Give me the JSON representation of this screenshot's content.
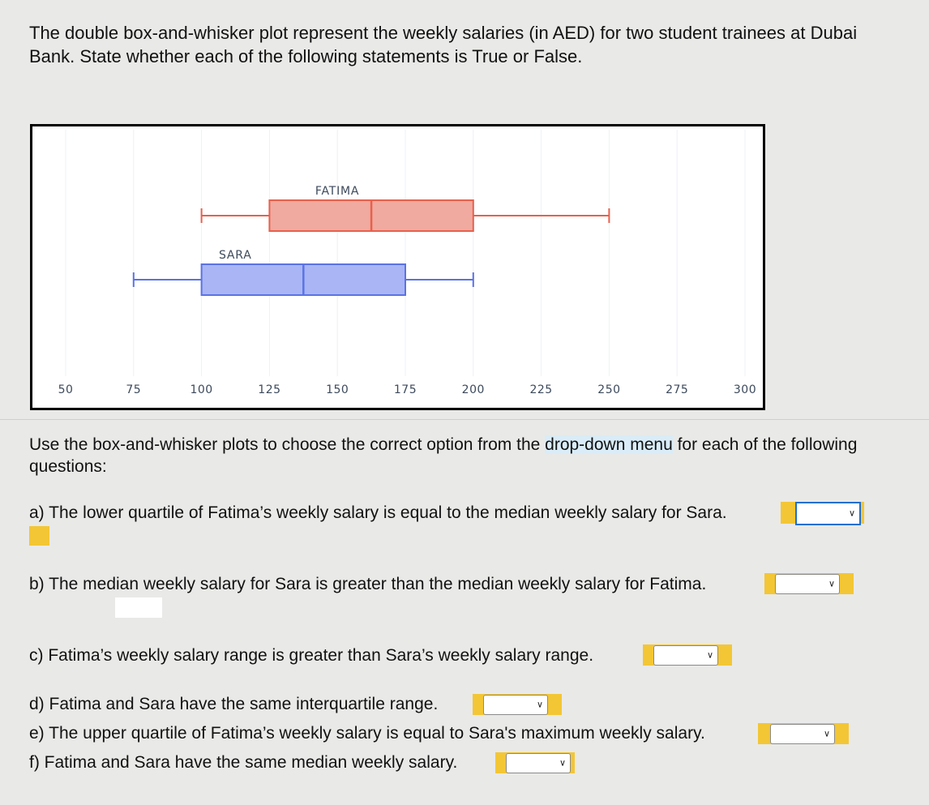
{
  "intro": "The double box-and-whisker plot represent the weekly salaries (in AED) for two student trainees at Dubai Bank. State whether each of the following statements is True or False.",
  "chart_data": {
    "type": "boxplot",
    "orientation": "horizontal",
    "xlim": [
      50,
      300
    ],
    "xticks": [
      50,
      75,
      100,
      125,
      150,
      175,
      200,
      225,
      250,
      275,
      300
    ],
    "grid": true,
    "series": [
      {
        "name": "FATIMA",
        "min": 100,
        "q1": 125,
        "median": 162.5,
        "q3": 200,
        "max": 250,
        "color": "#e8604c",
        "fill": "#f0aa9f"
      },
      {
        "name": "SARA",
        "min": 75,
        "q1": 100,
        "median": 137.5,
        "q3": 175,
        "max": 200,
        "color": "#5b72e6",
        "fill": "#aab5f5"
      }
    ]
  },
  "instructions": {
    "pre": "Use the box-and-whisker plots to choose the correct option from the ",
    "highlight": "drop-down menu",
    "post": " for each of the following questions:"
  },
  "questions": [
    {
      "id": "a",
      "text": "a) The lower quartile of Fatima’s weekly salary is equal to the median weekly salary for Sara.",
      "selected": ""
    },
    {
      "id": "b",
      "text": "b) The median weekly salary for Sara is greater than the median weekly salary for Fatima.",
      "selected": ""
    },
    {
      "id": "c",
      "text": "c) Fatima’s weekly salary range is greater than Sara’s weekly salary range.",
      "selected": ""
    },
    {
      "id": "d",
      "text": "d) Fatima and Sara have the same interquartile range.",
      "selected": ""
    },
    {
      "id": "e",
      "text": "e) The upper quartile of Fatima’s weekly salary is equal to Sara's maximum weekly salary.",
      "selected": ""
    },
    {
      "id": "f",
      "text": "f) Fatima and Sara have the same median weekly salary.",
      "selected": ""
    }
  ],
  "icons": {
    "dropdown": "chevron-down-icon"
  }
}
